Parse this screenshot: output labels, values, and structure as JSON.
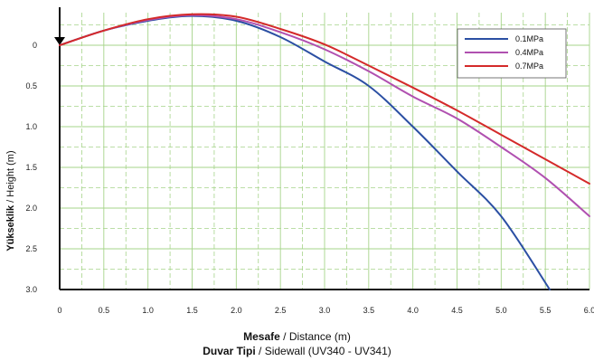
{
  "chart_data": {
    "type": "line",
    "ylabel_bold": "Yükseklik",
    "ylabel_rest": " / Height (m)",
    "xlabel_bold": "Mesafe",
    "xlabel_rest": " / Distance (m)",
    "caption_bold": "Duvar Tipi",
    "caption_rest": " / Sidewall (UV340 - UV341)",
    "xlim": [
      0,
      6.0
    ],
    "ylim": [
      -0.4,
      3.0
    ],
    "y_inverted": true,
    "grid": true,
    "legend_position": "top-right",
    "x_ticks": [
      "0",
      "0.5",
      "1.0",
      "1.5",
      "2.0",
      "2.5",
      "3.0",
      "3.5",
      "4.0",
      "4.5",
      "5.0",
      "5.5",
      "6.0"
    ],
    "y_ticks": [
      "0",
      "0.5",
      "1.0",
      "1.5",
      "2.0",
      "2.5",
      "3.0"
    ],
    "series": [
      {
        "name": "0.1MPa",
        "color": "#2b4fa3",
        "x": [
          0,
          0.5,
          1.0,
          1.5,
          2.0,
          2.5,
          3.0,
          3.5,
          4.0,
          4.5,
          5.0,
          5.55
        ],
        "y": [
          0,
          -0.18,
          -0.3,
          -0.36,
          -0.3,
          -0.1,
          0.2,
          0.5,
          1.0,
          1.55,
          2.1,
          3.0
        ]
      },
      {
        "name": "0.4MPa",
        "color": "#b050b0",
        "x": [
          0,
          0.5,
          1.0,
          1.5,
          2.0,
          2.5,
          3.0,
          3.5,
          4.0,
          4.5,
          5.0,
          5.5,
          6.0
        ],
        "y": [
          0,
          -0.18,
          -0.31,
          -0.37,
          -0.32,
          -0.16,
          0.05,
          0.32,
          0.63,
          0.9,
          1.25,
          1.63,
          2.1
        ]
      },
      {
        "name": "0.7MPa",
        "color": "#d42a2a",
        "x": [
          0,
          0.5,
          1.0,
          1.5,
          2.0,
          2.5,
          3.0,
          3.5,
          4.0,
          4.5,
          5.0,
          5.5,
          6.0
        ],
        "y": [
          0,
          -0.18,
          -0.32,
          -0.38,
          -0.35,
          -0.2,
          -0.01,
          0.25,
          0.52,
          0.8,
          1.1,
          1.4,
          1.7
        ]
      }
    ]
  },
  "style": {
    "grid_color": "#a6d48a",
    "axis_color": "#111111",
    "marker": "down-triangle"
  }
}
